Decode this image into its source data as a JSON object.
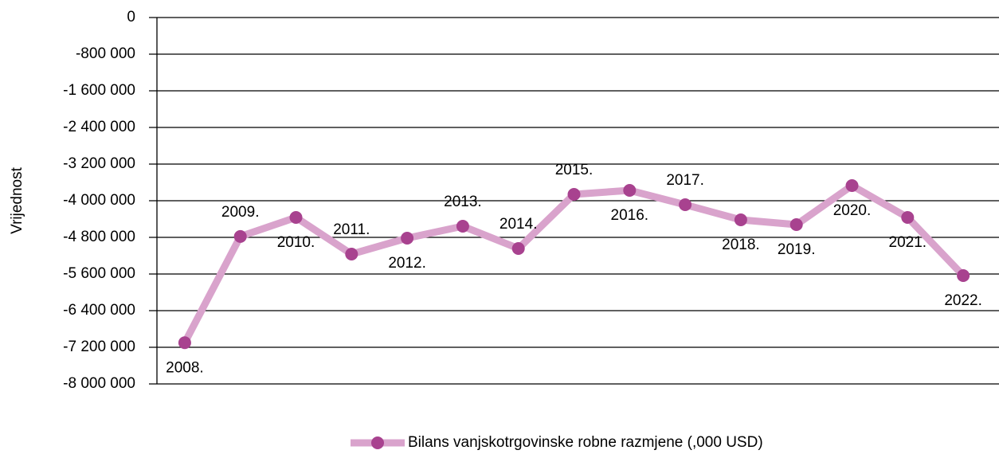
{
  "chart_data": {
    "type": "line",
    "y_label": "Vrijednost",
    "categories": [
      "2008.",
      "2009.",
      "2010.",
      "2011.",
      "2012.",
      "2013.",
      "2014.",
      "2015.",
      "2016.",
      "2017.",
      "2018.",
      "2019.",
      "2020.",
      "2021.",
      "2022."
    ],
    "series": [
      {
        "name": "Bilans vanjskotrgovinske robne razmjene (,000 USD)",
        "color": "#d9a3cc",
        "marker_color": "#a8428f",
        "values": [
          -7100000,
          -4780000,
          -4365000,
          -5165000,
          -4817000,
          -4557000,
          -5043000,
          -3861000,
          -3774000,
          -4087000,
          -4417000,
          -4522000,
          -3670000,
          -4365000,
          -5635000
        ]
      }
    ],
    "ylim": [
      -8000000,
      0
    ],
    "yticks": [
      0,
      {
        "value": -800000,
        "label": "-800 000"
      },
      {
        "value": -1600000,
        "label": "-1 600 000"
      },
      {
        "value": -2400000,
        "label": "-2 400 000"
      },
      {
        "value": -3200000,
        "label": "-3 200 000"
      },
      {
        "value": -4000000,
        "label": "-4 000 000"
      },
      {
        "value": -4800000,
        "label": "-4 800 000"
      },
      {
        "value": -5600000,
        "label": "-5 600 000"
      },
      {
        "value": -6400000,
        "label": "-6 400 000"
      },
      {
        "value": -7200000,
        "label": "-7 200 000"
      },
      {
        "value": -8000000,
        "label": "-8 000 000"
      }
    ],
    "grid": true,
    "legend": "bottom"
  }
}
